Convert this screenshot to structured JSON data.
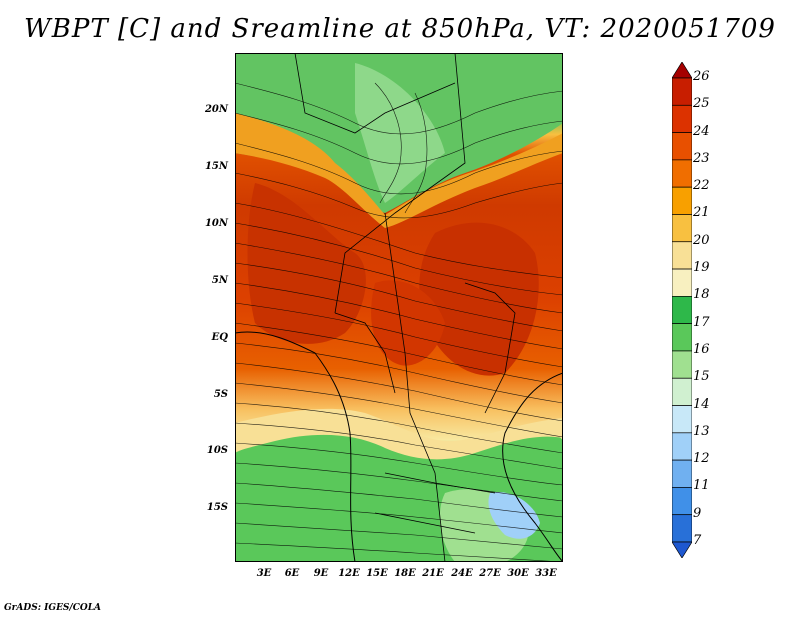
{
  "title": "WBPT [C] and Sreamline at 850hPa, VT: 2020051709",
  "credit": "GrADS: IGES/COLA",
  "lat_labels": [
    "20N",
    "15N",
    "10N",
    "5N",
    "EQ",
    "5S",
    "10S",
    "15S"
  ],
  "lon_labels": [
    "3E",
    "6E",
    "9E",
    "12E",
    "15E",
    "18E",
    "21E",
    "24E",
    "27E",
    "30E",
    "33E"
  ],
  "colorbar": {
    "labels": [
      "26",
      "25",
      "24",
      "23",
      "22",
      "21",
      "20",
      "19",
      "18",
      "17",
      "16",
      "15",
      "14",
      "13",
      "12",
      "11",
      "9",
      "7"
    ],
    "colors": [
      "#a50000",
      "#c81e00",
      "#dc3200",
      "#e85000",
      "#f06e00",
      "#f8a000",
      "#f8c040",
      "#f8e096",
      "#f8f0c0",
      "#2eb84a",
      "#5ac85a",
      "#a0e090",
      "#d0f0d0",
      "#c8e8f8",
      "#a0d0f8",
      "#70b0f0",
      "#4090e8",
      "#2870d8",
      "#1e58d0"
    ]
  }
}
